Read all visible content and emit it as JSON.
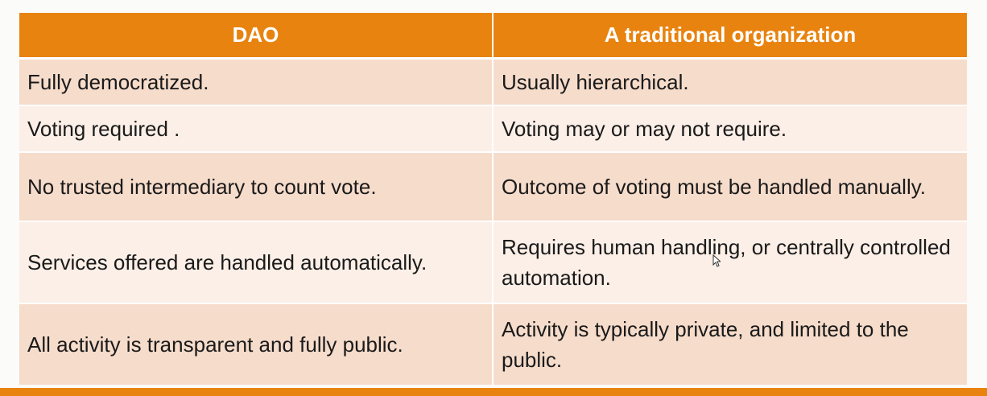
{
  "table": {
    "headers": [
      "DAO",
      "A traditional organization"
    ],
    "rows": [
      [
        "Fully democratized.",
        "Usually hierarchical."
      ],
      [
        "Voting required .",
        "Voting may or may not require."
      ],
      [
        "No trusted intermediary to count vote.",
        "Outcome of voting must be handled manually."
      ],
      [
        "Services offered are handled automatically.",
        "Requires human handling, or centrally controlled automation."
      ],
      [
        "All activity is transparent and fully public.",
        "Activity is typically private, and limited to the public."
      ]
    ]
  },
  "colors": {
    "header_bg": "#e8830f",
    "row_dark": "#f6dccb",
    "row_light": "#fbefe7",
    "accent_bar": "#e8830f"
  },
  "icons": {
    "cursor": "mouse-pointer-icon"
  }
}
